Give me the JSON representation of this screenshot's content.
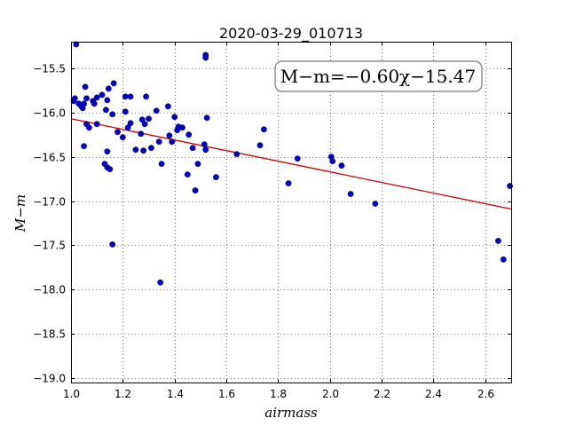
{
  "chart_data": {
    "type": "scatter",
    "title": "2020-03-29_010713",
    "xlabel": "airmass",
    "ylabel": "M−m",
    "xlim": [
      1.0,
      2.7
    ],
    "ylim": [
      -19.05,
      -15.2
    ],
    "y_inverted": true,
    "grid": true,
    "x_ticks": [
      "1.0",
      "1.2",
      "1.4",
      "1.6",
      "1.8",
      "2.0",
      "2.2",
      "2.4",
      "2.6"
    ],
    "y_ticks": [
      "−15.5",
      "−16.0",
      "−16.5",
      "−17.0",
      "−17.5",
      "−18.0",
      "−18.5",
      "−19.0"
    ],
    "fit_label": "M−m=−0.60χ−15.47",
    "fit": {
      "slope": -0.6,
      "intercept": -15.47,
      "color": "#cc0000"
    },
    "point_color": "#0000cc",
    "points": [
      [
        1.01,
        -15.87
      ],
      [
        1.015,
        -15.84
      ],
      [
        1.02,
        -15.23
      ],
      [
        1.03,
        -15.9
      ],
      [
        1.04,
        -15.93
      ],
      [
        1.045,
        -15.95
      ],
      [
        1.05,
        -15.9
      ],
      [
        1.05,
        -16.38
      ],
      [
        1.055,
        -15.71
      ],
      [
        1.06,
        -16.13
      ],
      [
        1.06,
        -15.84
      ],
      [
        1.07,
        -16.17
      ],
      [
        1.085,
        -15.87
      ],
      [
        1.09,
        -15.9
      ],
      [
        1.1,
        -15.83
      ],
      [
        1.1,
        -16.13
      ],
      [
        1.12,
        -15.8
      ],
      [
        1.13,
        -16.58
      ],
      [
        1.135,
        -15.97
      ],
      [
        1.14,
        -15.86
      ],
      [
        1.14,
        -16.44
      ],
      [
        1.14,
        -16.62
      ],
      [
        1.145,
        -15.73
      ],
      [
        1.15,
        -16.64
      ],
      [
        1.16,
        -16.02
      ],
      [
        1.16,
        -17.49
      ],
      [
        1.165,
        -15.67
      ],
      [
        1.18,
        -16.22
      ],
      [
        1.2,
        -16.28
      ],
      [
        1.21,
        -15.82
      ],
      [
        1.21,
        -15.99
      ],
      [
        1.22,
        -16.17
      ],
      [
        1.23,
        -16.12
      ],
      [
        1.23,
        -15.82
      ],
      [
        1.25,
        -16.42
      ],
      [
        1.27,
        -16.24
      ],
      [
        1.275,
        -16.08
      ],
      [
        1.28,
        -16.43
      ],
      [
        1.285,
        -16.13
      ],
      [
        1.29,
        -15.82
      ],
      [
        1.3,
        -16.07
      ],
      [
        1.31,
        -16.4
      ],
      [
        1.33,
        -15.98
      ],
      [
        1.34,
        -16.33
      ],
      [
        1.345,
        -17.92
      ],
      [
        1.35,
        -16.58
      ],
      [
        1.375,
        -15.93
      ],
      [
        1.38,
        -16.26
      ],
      [
        1.39,
        -16.33
      ],
      [
        1.4,
        -16.05
      ],
      [
        1.41,
        -16.2
      ],
      [
        1.415,
        -16.16
      ],
      [
        1.43,
        -16.17
      ],
      [
        1.45,
        -16.7
      ],
      [
        1.455,
        -16.25
      ],
      [
        1.47,
        -16.4
      ],
      [
        1.48,
        -16.88
      ],
      [
        1.49,
        -16.58
      ],
      [
        1.515,
        -16.36
      ],
      [
        1.52,
        -16.42
      ],
      [
        1.52,
        -15.35
      ],
      [
        1.52,
        -15.38
      ],
      [
        1.525,
        -16.06
      ],
      [
        1.56,
        -16.73
      ],
      [
        1.64,
        -16.47
      ],
      [
        1.73,
        -16.37
      ],
      [
        1.745,
        -16.19
      ],
      [
        1.84,
        -16.8
      ],
      [
        1.875,
        -16.52
      ],
      [
        2.005,
        -16.5
      ],
      [
        2.01,
        -16.55
      ],
      [
        2.045,
        -16.6
      ],
      [
        2.08,
        -16.92
      ],
      [
        2.175,
        -17.03
      ],
      [
        2.65,
        -17.45
      ],
      [
        2.67,
        -17.66
      ],
      [
        2.695,
        -16.83
      ]
    ]
  }
}
